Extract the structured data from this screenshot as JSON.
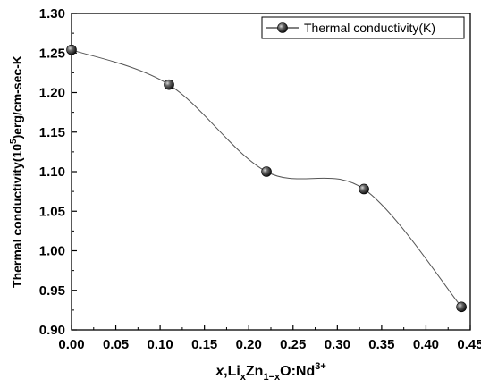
{
  "chart_data": {
    "type": "line",
    "x": [
      0.0,
      0.11,
      0.22,
      0.33,
      0.44
    ],
    "series": [
      {
        "name": "Thermal conductivity(K)",
        "values": [
          1.254,
          1.21,
          1.1,
          1.078,
          0.929
        ]
      }
    ],
    "xlim": [
      0.0,
      0.45
    ],
    "ylim": [
      0.9,
      1.3
    ],
    "xticks": [
      "0.00",
      "0.05",
      "0.10",
      "0.15",
      "0.20",
      "0.25",
      "0.30",
      "0.35",
      "0.40",
      "0.45"
    ],
    "yticks": [
      "0.90",
      "0.95",
      "1.00",
      "1.05",
      "1.10",
      "1.15",
      "1.20",
      "1.25",
      "1.30"
    ],
    "xlabel": {
      "x": "x",
      "comma": ",",
      "li": "Li",
      "sub_x": "x",
      "zn": "Zn",
      "sub_1x": "1−x",
      "o": "O:Nd",
      "sup": "3+"
    },
    "ylabel": {
      "main": "Thermal conductivity(10",
      "sup": "5",
      "tail": ")erg/cm-sec-K"
    },
    "legend_position": "top-right",
    "grid": false,
    "colors": {
      "line": "#555555",
      "marker": "#1a1a1a",
      "axis": "#000000"
    }
  }
}
